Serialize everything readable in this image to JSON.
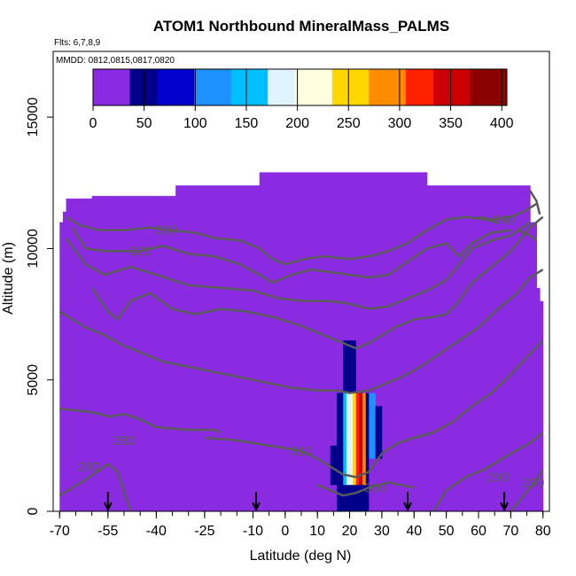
{
  "chart_data": {
    "type": "heatmap",
    "title": "ATOM1 Northbound MineralMass_PALMS",
    "flights_note": "Flts: 6,7,8,9",
    "dates_note": "MMDD: 0812,0815,0817,0820",
    "xlabel": "Latitude (deg N)",
    "ylabel": "Altitude (m)",
    "xlim": [
      -72,
      82
    ],
    "ylim": [
      0,
      17500
    ],
    "x_ticks": [
      -70,
      -55,
      -40,
      -25,
      -10,
      0,
      10,
      20,
      30,
      40,
      50,
      60,
      70,
      80
    ],
    "y_ticks": [
      0,
      5000,
      10000,
      15000
    ],
    "colorbar": {
      "ticks": [
        0,
        50,
        100,
        150,
        200,
        250,
        300,
        350,
        400
      ],
      "range": [
        0,
        405
      ],
      "colors": [
        "#8a2be2",
        "#00008b",
        "#0000cd",
        "#1e90ff",
        "#00bfff",
        "#e0f4ff",
        "#ffffe0",
        "#ffd700",
        "#ff8c00",
        "#ff2000",
        "#cc0000",
        "#8b0000"
      ]
    },
    "background_value": 2,
    "coverage_tops": [
      {
        "lat_range": [
          -70,
          -69
        ],
        "top": 11000
      },
      {
        "lat_range": [
          -69,
          -68
        ],
        "top": 11400
      },
      {
        "lat_range": [
          -68,
          -60
        ],
        "top": 11900
      },
      {
        "lat_range": [
          -60,
          -34
        ],
        "top": 12000
      },
      {
        "lat_range": [
          -34,
          -8
        ],
        "top": 12400
      },
      {
        "lat_range": [
          -8,
          44
        ],
        "top": 12900
      },
      {
        "lat_range": [
          44,
          76
        ],
        "top": 12400
      },
      {
        "lat_range": [
          76,
          78
        ],
        "top": 11000
      },
      {
        "lat_range": [
          78,
          79
        ],
        "top": 8500
      },
      {
        "lat_range": [
          79,
          80
        ],
        "top": 8000
      }
    ],
    "cells": [
      {
        "lat": [
          -45,
          -44
        ],
        "alt": [
          4200,
          5000
        ],
        "value": 10
      },
      {
        "lat": [
          -42,
          -40
        ],
        "alt": [
          4000,
          5000
        ],
        "value": 8
      },
      {
        "lat": [
          -44,
          -42
        ],
        "alt": [
          3000,
          4000
        ],
        "value": 8
      },
      {
        "lat": [
          8,
          11
        ],
        "alt": [
          1500,
          3000
        ],
        "value": 15
      },
      {
        "lat": [
          11,
          14
        ],
        "alt": [
          1000,
          2000
        ],
        "value": 25
      },
      {
        "lat": [
          14,
          16
        ],
        "alt": [
          500,
          2500
        ],
        "value": 40
      },
      {
        "lat": [
          16,
          18
        ],
        "alt": [
          500,
          4500
        ],
        "value": 60
      },
      {
        "lat": [
          18,
          19
        ],
        "alt": [
          1000,
          4500
        ],
        "value": 165
      },
      {
        "lat": [
          19,
          20
        ],
        "alt": [
          1000,
          4500
        ],
        "value": 200
      },
      {
        "lat": [
          20,
          21
        ],
        "alt": [
          1000,
          4500
        ],
        "value": 180
      },
      {
        "lat": [
          21,
          22
        ],
        "alt": [
          1000,
          4500
        ],
        "value": 240
      },
      {
        "lat": [
          22,
          23
        ],
        "alt": [
          1000,
          4500
        ],
        "value": 310
      },
      {
        "lat": [
          23,
          24
        ],
        "alt": [
          1000,
          4500
        ],
        "value": 370
      },
      {
        "lat": [
          24,
          25
        ],
        "alt": [
          1000,
          4500
        ],
        "value": 290
      },
      {
        "lat": [
          25,
          26
        ],
        "alt": [
          1000,
          4500
        ],
        "value": 40
      },
      {
        "lat": [
          18,
          22
        ],
        "alt": [
          4500,
          6500
        ],
        "value": 50
      },
      {
        "lat": [
          22,
          26
        ],
        "alt": [
          4500,
          6500
        ],
        "value": 30
      },
      {
        "lat": [
          26,
          28
        ],
        "alt": [
          2000,
          4500
        ],
        "value": 120
      },
      {
        "lat": [
          28,
          30
        ],
        "alt": [
          2000,
          4000
        ],
        "value": 60
      },
      {
        "lat": [
          26,
          30
        ],
        "alt": [
          4500,
          5000
        ],
        "value": 30
      },
      {
        "lat": [
          16,
          26
        ],
        "alt": [
          0,
          1000
        ],
        "value": 40
      },
      {
        "lat": [
          26,
          34
        ],
        "alt": [
          0,
          2000
        ],
        "value": 30
      },
      {
        "lat": [
          34,
          40
        ],
        "alt": [
          0,
          1500
        ],
        "value": 12
      },
      {
        "lat": [
          12,
          16
        ],
        "alt": [
          0,
          1000
        ],
        "value": 20
      }
    ],
    "contours": [
      {
        "label": "280",
        "label_at": [
          -50,
          2700
        ],
        "points": [
          [
            -70,
            3900
          ],
          [
            -62,
            3800
          ],
          [
            -57,
            3700
          ],
          [
            -55,
            3600
          ],
          [
            -50,
            3700
          ],
          [
            -45,
            3500
          ],
          [
            -40,
            3200
          ],
          [
            -30,
            3100
          ],
          [
            -22,
            3100
          ],
          [
            -20,
            3000
          ]
        ]
      },
      {
        "label": "280",
        "label_at": [
          -61,
          1700
        ],
        "points": [
          [
            -70,
            600
          ],
          [
            -62,
            1200
          ],
          [
            -55,
            1800
          ],
          [
            -52,
            1500
          ],
          [
            -48,
            0
          ]
        ]
      },
      {
        "label": "310",
        "label_at": [
          5,
          2300
        ],
        "points": [
          [
            -25,
            2800
          ],
          [
            -15,
            2700
          ],
          [
            -5,
            2500
          ],
          [
            5,
            2300
          ],
          [
            10,
            2000
          ],
          [
            14,
            1700
          ],
          [
            18,
            1400
          ],
          [
            22,
            1300
          ],
          [
            26,
            1500
          ],
          [
            30,
            2200
          ],
          [
            35,
            2600
          ],
          [
            40,
            2800
          ],
          [
            46,
            3000
          ],
          [
            52,
            3400
          ],
          [
            58,
            4000
          ],
          [
            64,
            4500
          ],
          [
            70,
            5200
          ],
          [
            76,
            6000
          ],
          [
            80,
            6500
          ]
        ]
      },
      {
        "label": "300",
        "label_at": [
          28,
          900
        ],
        "points": [
          [
            10,
            1000
          ],
          [
            14,
            800
          ],
          [
            18,
            600
          ],
          [
            22,
            700
          ],
          [
            26,
            900
          ],
          [
            32,
            1100
          ],
          [
            36,
            1000
          ],
          [
            40,
            900
          ]
        ]
      },
      {
        "label": "290",
        "label_at": [
          66,
          1300
        ],
        "points": [
          [
            46,
            0
          ],
          [
            50,
            800
          ],
          [
            56,
            1300
          ],
          [
            62,
            1600
          ],
          [
            70,
            2200
          ],
          [
            76,
            2600
          ],
          [
            80,
            3000
          ]
        ]
      },
      {
        "label": "290",
        "label_at": [
          77,
          1100
        ],
        "points": [
          [
            70,
            0
          ],
          [
            74,
            600
          ],
          [
            78,
            1200
          ],
          [
            80,
            1600
          ]
        ]
      },
      {
        "label": "",
        "points": [
          [
            -70,
            7600
          ],
          [
            -62,
            7000
          ],
          [
            -56,
            6700
          ],
          [
            -50,
            6300
          ],
          [
            -44,
            6000
          ],
          [
            -38,
            5700
          ],
          [
            -30,
            5500
          ],
          [
            -22,
            5300
          ],
          [
            -14,
            5100
          ],
          [
            -6,
            4900
          ],
          [
            2,
            4700
          ],
          [
            10,
            4600
          ],
          [
            16,
            4600
          ],
          [
            20,
            4500
          ],
          [
            26,
            4600
          ],
          [
            30,
            4800
          ],
          [
            36,
            5100
          ],
          [
            42,
            5500
          ],
          [
            48,
            6000
          ],
          [
            54,
            6500
          ],
          [
            60,
            7000
          ],
          [
            66,
            7700
          ],
          [
            72,
            8300
          ],
          [
            76,
            8900
          ],
          [
            80,
            9200
          ]
        ]
      },
      {
        "label": "",
        "points": [
          [
            -60,
            8500
          ],
          [
            -55,
            7600
          ],
          [
            -52,
            7300
          ],
          [
            -48,
            8000
          ],
          [
            -42,
            8300
          ],
          [
            -35,
            7700
          ],
          [
            -28,
            7500
          ],
          [
            -20,
            7700
          ],
          [
            -12,
            7600
          ],
          [
            -4,
            7400
          ],
          [
            4,
            7100
          ],
          [
            10,
            6800
          ],
          [
            16,
            6500
          ],
          [
            22,
            6200
          ],
          [
            26,
            6400
          ],
          [
            30,
            6700
          ],
          [
            34,
            7000
          ],
          [
            40,
            7300
          ],
          [
            46,
            7400
          ],
          [
            50,
            7500
          ],
          [
            54,
            8000
          ],
          [
            58,
            8700
          ],
          [
            64,
            9300
          ],
          [
            70,
            9900
          ],
          [
            76,
            10800
          ],
          [
            80,
            11200
          ]
        ]
      },
      {
        "label": "",
        "points": [
          [
            -68,
            10400
          ],
          [
            -62,
            9400
          ],
          [
            -56,
            9000
          ],
          [
            -48,
            9300
          ],
          [
            -40,
            9000
          ],
          [
            -30,
            8600
          ],
          [
            -20,
            8500
          ],
          [
            -10,
            8400
          ],
          [
            -2,
            8100
          ],
          [
            6,
            8000
          ],
          [
            14,
            8000
          ],
          [
            20,
            7900
          ],
          [
            26,
            7700
          ],
          [
            32,
            7800
          ],
          [
            38,
            8100
          ],
          [
            44,
            8400
          ],
          [
            50,
            8800
          ],
          [
            54,
            9400
          ],
          [
            58,
            10000
          ],
          [
            64,
            10300
          ],
          [
            70,
            10500
          ],
          [
            76,
            11000
          ]
        ]
      },
      {
        "label": "320",
        "label_at": [
          -45,
          9900
        ],
        "points": [
          [
            -66,
            10800
          ],
          [
            -62,
            10000
          ],
          [
            -56,
            9900
          ],
          [
            -50,
            9900
          ],
          [
            -45,
            9900
          ],
          [
            -38,
            10100
          ],
          [
            -30,
            9800
          ],
          [
            -22,
            9700
          ],
          [
            -14,
            9400
          ],
          [
            -8,
            9000
          ],
          [
            -4,
            8700
          ],
          [
            2,
            9000
          ],
          [
            8,
            9200
          ],
          [
            14,
            9100
          ],
          [
            20,
            9000
          ],
          [
            26,
            8900
          ],
          [
            32,
            9000
          ],
          [
            38,
            9500
          ],
          [
            44,
            10000
          ],
          [
            50,
            10200
          ],
          [
            54,
            9700
          ],
          [
            58,
            10200
          ],
          [
            64,
            10600
          ],
          [
            70,
            10700
          ]
        ]
      },
      {
        "label": "330",
        "label_at": [
          -37,
          10700
        ],
        "points": [
          [
            -68,
            11200
          ],
          [
            -64,
            10900
          ],
          [
            -58,
            10700
          ],
          [
            -50,
            10700
          ],
          [
            -42,
            10800
          ],
          [
            -36,
            10700
          ],
          [
            -28,
            10600
          ],
          [
            -22,
            10400
          ],
          [
            -14,
            10300
          ],
          [
            -8,
            10000
          ],
          [
            -4,
            9600
          ],
          [
            0,
            9400
          ],
          [
            6,
            9600
          ],
          [
            12,
            9700
          ],
          [
            20,
            9600
          ],
          [
            26,
            9700
          ],
          [
            32,
            9900
          ],
          [
            38,
            10200
          ],
          [
            44,
            10700
          ],
          [
            50,
            11100
          ],
          [
            56,
            11200
          ],
          [
            62,
            11100
          ],
          [
            66,
            11000
          ]
        ]
      },
      {
        "label": "340",
        "label_at": [
          68,
          11100
        ],
        "points": [
          [
            60,
            11200
          ],
          [
            64,
            11100
          ],
          [
            70,
            11200
          ],
          [
            74,
            11400
          ],
          [
            78,
            11700
          ]
        ]
      },
      {
        "label": "",
        "points": [
          [
            72,
            10700
          ],
          [
            76,
            10500
          ],
          [
            78,
            10300
          ]
        ]
      },
      {
        "label": "",
        "points": [
          [
            76,
            12200
          ],
          [
            78,
            11800
          ],
          [
            79,
            11300
          ]
        ]
      }
    ],
    "arrows_lat": [
      -55,
      -9,
      38,
      68
    ]
  }
}
